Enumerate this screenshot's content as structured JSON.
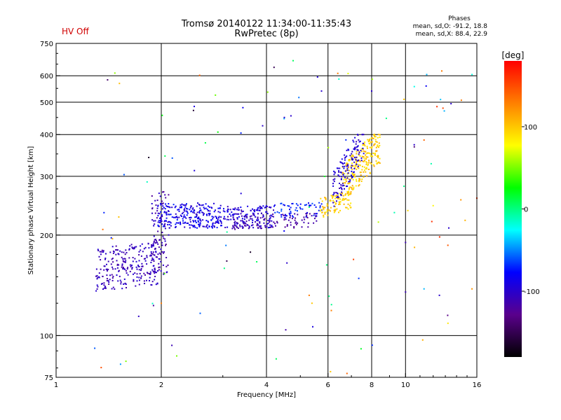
{
  "status": {
    "hv_label": "HV Off"
  },
  "header": {
    "title_line1": "Tromsø 20140122 11:34:00-11:35:43",
    "title_line2": "RwPretec (8p)"
  },
  "phases": {
    "heading": "Phases",
    "o_line": "mean, sd,O: -91.2, 18.8",
    "x_line": "mean, sd,X:  88.4, 22.9"
  },
  "chart_data": {
    "type": "scatter",
    "title": "Tromsø 20140122 11:34:00-11:35:43",
    "subtitle": "RwPretec (8p)",
    "xlabel": "Frequency [MHz]",
    "ylabel": "Stationary phase Virtual Height [km]",
    "xscale": "log",
    "yscale": "log",
    "xlim": [
      1,
      16
    ],
    "ylim": [
      75,
      750
    ],
    "xticks": [
      1,
      2,
      4,
      6,
      8,
      10,
      16
    ],
    "yticks": [
      75,
      100,
      200,
      300,
      400,
      500,
      600,
      750
    ],
    "grid_x": [
      2,
      4,
      6,
      8,
      10
    ],
    "grid_y": [
      100,
      200,
      300,
      400,
      500,
      600
    ],
    "colorbar": {
      "label": "[deg]",
      "range": [
        -180,
        180
      ],
      "ticks": [
        -100,
        0,
        100
      ],
      "colormap": "rainbow",
      "colors": [
        "#000000",
        "#5a008c",
        "#0000ff",
        "#00ffff",
        "#00ff00",
        "#ffff00",
        "#ff8000",
        "#ff0000"
      ]
    },
    "clusters": [
      {
        "name": "",
        "f_range": [
          1.3,
          1.98
        ],
        "h_range": [
          135,
          190
        ],
        "phase_range": [
          -120,
          -95
        ],
        "count": 260,
        "h_slope": 0.12
      },
      {
        "name": "",
        "f_range": [
          1.88,
          2.1
        ],
        "h_range": [
          150,
          270
        ],
        "phase_range": [
          -125,
          -95
        ],
        "count": 90,
        "h_slope": 0
      },
      {
        "name": "",
        "f_range": [
          1.95,
          3.0
        ],
        "h_range": [
          210,
          250
        ],
        "phase_range": [
          -105,
          -70
        ],
        "count": 260,
        "h_slope": -0.03
      },
      {
        "name": "",
        "f_range": [
          3.0,
          4.2
        ],
        "h_range": [
          208,
          245
        ],
        "phase_range": [
          -115,
          -80
        ],
        "count": 160,
        "h_slope": 0.04
      },
      {
        "name": "",
        "f_range": [
          3.2,
          5.6
        ],
        "h_range": [
          208,
          232
        ],
        "phase_range": [
          -125,
          -110
        ],
        "count": 90,
        "h_slope": 0.1
      },
      {
        "name": "",
        "f_range": [
          4.2,
          5.8
        ],
        "h_range": [
          225,
          250
        ],
        "phase_range": [
          -90,
          -60
        ],
        "count": 60,
        "h_slope": 0.05
      },
      {
        "name": "",
        "f_range": [
          5.7,
          7.0
        ],
        "h_range": [
          225,
          270
        ],
        "phase_range": [
          85,
          110
        ],
        "count": 90,
        "h_slope": 0.25
      },
      {
        "name": "",
        "f_range": [
          6.6,
          8.5
        ],
        "h_range": [
          250,
          400
        ],
        "phase_range": [
          80,
          115
        ],
        "count": 240,
        "h_slope": 0.45
      },
      {
        "name": "",
        "f_range": [
          6.2,
          7.6
        ],
        "h_range": [
          240,
          400
        ],
        "phase_range": [
          -110,
          -85
        ],
        "count": 140,
        "h_slope": 0.5
      },
      {
        "name": "",
        "f_range": [
          1.2,
          16
        ],
        "h_range": [
          80,
          700
        ],
        "phase_range": [
          -180,
          180
        ],
        "count": 80,
        "h_slope": 0
      }
    ],
    "points": [
      {
        "f": 3.9,
        "h": 425,
        "phase": -100
      },
      {
        "f": 4.5,
        "h": 450,
        "phase": -100
      },
      {
        "f": 4.7,
        "h": 455,
        "phase": -100
      },
      {
        "f": 5.6,
        "h": 595,
        "phase": -95
      },
      {
        "f": 5.75,
        "h": 540,
        "phase": -100
      },
      {
        "f": 6.4,
        "h": 610,
        "phase": 130
      },
      {
        "f": 8.0,
        "h": 540,
        "phase": -100
      },
      {
        "f": 9.9,
        "h": 510,
        "phase": 100
      },
      {
        "f": 11.5,
        "h": 605,
        "phase": -40
      },
      {
        "f": 12.7,
        "h": 620,
        "phase": 130
      },
      {
        "f": 13.5,
        "h": 495,
        "phase": -100
      },
      {
        "f": 15.5,
        "h": 605,
        "phase": -20
      },
      {
        "f": 12.3,
        "h": 485,
        "phase": 160
      },
      {
        "f": 12.8,
        "h": 480,
        "phase": 150
      },
      {
        "f": 11.3,
        "h": 385,
        "phase": 140
      },
      {
        "f": 13.3,
        "h": 210,
        "phase": -100
      },
      {
        "f": 10.0,
        "h": 190,
        "phase": -110
      },
      {
        "f": 10.0,
        "h": 135,
        "phase": -110
      },
      {
        "f": 11.3,
        "h": 138,
        "phase": -40
      },
      {
        "f": 12.5,
        "h": 132,
        "phase": -100
      },
      {
        "f": 13.2,
        "h": 115,
        "phase": -130
      },
      {
        "f": 15.5,
        "h": 138,
        "phase": 120
      },
      {
        "f": 11.2,
        "h": 97,
        "phase": 110
      },
      {
        "f": 6.1,
        "h": 78,
        "phase": 100
      },
      {
        "f": 6.8,
        "h": 77,
        "phase": 140
      },
      {
        "f": 5.4,
        "h": 125,
        "phase": 100
      },
      {
        "f": 5.3,
        "h": 132,
        "phase": 130
      },
      {
        "f": 1.9,
        "h": 123,
        "phase": -120
      },
      {
        "f": 2.05,
        "h": 345,
        "phase": 10
      },
      {
        "f": 2.15,
        "h": 340,
        "phase": -60
      },
      {
        "f": 1.45,
        "h": 195,
        "phase": 110
      },
      {
        "f": 2.0,
        "h": 125,
        "phase": 130
      },
      {
        "f": 9.9,
        "h": 280,
        "phase": 0
      },
      {
        "f": 12.0,
        "h": 245,
        "phase": 80
      },
      {
        "f": 14.4,
        "h": 255,
        "phase": 120
      },
      {
        "f": 16.0,
        "h": 258,
        "phase": 160
      }
    ]
  }
}
